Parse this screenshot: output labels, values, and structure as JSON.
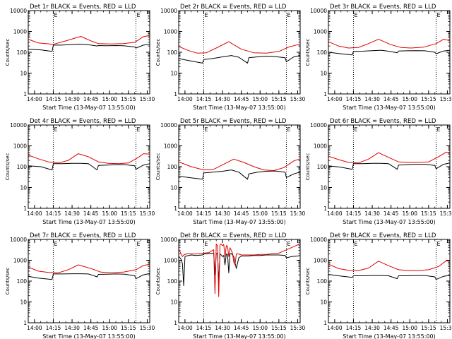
{
  "figure": {
    "background": "#ffffff",
    "axis_color": "#000000",
    "events_color": "#000000",
    "lld_color": "#e00000"
  },
  "chart_data": [
    {
      "type": "line",
      "scale": "log",
      "title": "Det 1r BLACK = Events, RED = LLD",
      "ylabel": "Counts/sec",
      "xlabel": "Start Time (13-May-07 13:55:00)",
      "x_ticks": [
        "14:00",
        "14:15",
        "14:30",
        "14:45",
        "15:00",
        "15:15",
        "15:30"
      ],
      "y_ticks": [
        "1",
        "10",
        "100",
        "1000",
        "10000"
      ],
      "ylim": [
        1,
        10000
      ],
      "xlim_min": [
        0,
        97
      ],
      "saa_markers_min": [
        20,
        86
      ],
      "marker_labels": [
        "E",
        "E"
      ],
      "series": [
        {
          "name": "Events",
          "x": [
            0,
            10,
            19,
            20,
            26,
            34,
            41,
            48,
            55,
            56,
            63,
            70,
            76,
            85,
            86,
            92,
            97
          ],
          "y": [
            140,
            130,
            110,
            220,
            220,
            235,
            245,
            230,
            200,
            210,
            205,
            210,
            205,
            180,
            160,
            220,
            240
          ]
        },
        {
          "name": "LLD",
          "x": [
            0,
            8,
            20,
            30,
            42,
            50,
            56,
            66,
            76,
            85,
            92,
            97
          ],
          "y": [
            420,
            280,
            240,
            350,
            580,
            350,
            260,
            250,
            260,
            300,
            560,
            640
          ]
        }
      ]
    },
    {
      "type": "line",
      "scale": "log",
      "title": "Det 2r BLACK = Events, RED = LLD",
      "ylabel": "Counts/sec",
      "xlabel": "Start Time (13-May-07 13:55:00)",
      "x_ticks": [
        "14:00",
        "14:15",
        "14:30",
        "14:45",
        "15:00",
        "15:15",
        "15:30"
      ],
      "y_ticks": [
        "1",
        "10",
        "100",
        "1000",
        "10000"
      ],
      "ylim": [
        1,
        10000
      ],
      "xlim_min": [
        0,
        97
      ],
      "saa_markers_min": [
        20,
        86
      ],
      "marker_labels": [
        "E",
        "E"
      ],
      "series": [
        {
          "name": "Events",
          "x": [
            0,
            8,
            19,
            20,
            27,
            35,
            42,
            48,
            55,
            56,
            63,
            70,
            77,
            85,
            86,
            92,
            97
          ],
          "y": [
            50,
            40,
            30,
            45,
            50,
            60,
            70,
            58,
            30,
            55,
            60,
            65,
            62,
            55,
            35,
            60,
            70
          ]
        },
        {
          "name": "LLD",
          "x": [
            0,
            8,
            15,
            22,
            30,
            40,
            50,
            60,
            70,
            80,
            88,
            95,
            97
          ],
          "y": [
            190,
            120,
            90,
            95,
            160,
            320,
            140,
            95,
            90,
            110,
            180,
            230,
            220
          ]
        }
      ]
    },
    {
      "type": "line",
      "scale": "log",
      "title": "Det 3r BLACK = Events, RED = LLD",
      "ylabel": "Counts/sec",
      "xlabel": "Start Time (13-May-07 13:55:00)",
      "x_ticks": [
        "14:00",
        "14:15",
        "14:30",
        "14:45",
        "15:00",
        "15:15",
        "15:30"
      ],
      "y_ticks": [
        "1",
        "10",
        "100",
        "1000",
        "10000"
      ],
      "ylim": [
        1,
        10000
      ],
      "xlim_min": [
        0,
        97
      ],
      "saa_markers_min": [
        20,
        86
      ],
      "marker_labels": [
        "E",
        "E"
      ],
      "series": [
        {
          "name": "Events",
          "x": [
            0,
            10,
            19,
            20,
            27,
            35,
            42,
            48,
            55,
            56,
            63,
            70,
            77,
            85,
            86,
            92,
            97
          ],
          "y": [
            100,
            85,
            75,
            110,
            112,
            120,
            125,
            112,
            95,
            115,
            118,
            120,
            118,
            100,
            85,
            115,
            125
          ]
        },
        {
          "name": "LLD",
          "x": [
            0,
            8,
            16,
            24,
            32,
            40,
            50,
            58,
            66,
            76,
            86,
            92,
            97
          ],
          "y": [
            320,
            200,
            160,
            170,
            260,
            420,
            230,
            170,
            160,
            175,
            260,
            420,
            360
          ]
        }
      ]
    },
    {
      "type": "line",
      "scale": "log",
      "title": "Det 4r BLACK = Events, RED = LLD",
      "ylabel": "Counts/sec",
      "xlabel": "Start Time (13-May-07 13:55:00)",
      "x_ticks": [
        "14:00",
        "14:15",
        "14:30",
        "14:45",
        "15:00",
        "15:15",
        "15:30"
      ],
      "y_ticks": [
        "1",
        "10",
        "100",
        "1000",
        "10000"
      ],
      "ylim": [
        1,
        10000
      ],
      "xlim_min": [
        0,
        97
      ],
      "saa_markers_min": [
        20,
        86
      ],
      "marker_labels": [
        "E",
        "E"
      ],
      "series": [
        {
          "name": "Events",
          "x": [
            0,
            10,
            19,
            20,
            27,
            35,
            42,
            48,
            55,
            56,
            63,
            70,
            77,
            85,
            86,
            92,
            97
          ],
          "y": [
            110,
            100,
            70,
            140,
            140,
            145,
            145,
            140,
            70,
            115,
            120,
            125,
            125,
            110,
            75,
            120,
            140
          ]
        },
        {
          "name": "LLD",
          "x": [
            0,
            8,
            16,
            24,
            32,
            40,
            48,
            56,
            64,
            72,
            80,
            88,
            92,
            97
          ],
          "y": [
            360,
            240,
            170,
            150,
            200,
            420,
            300,
            170,
            145,
            140,
            150,
            280,
            420,
            400
          ]
        }
      ]
    },
    {
      "type": "line",
      "scale": "log",
      "title": "Det 5r BLACK = Events, RED = LLD",
      "ylabel": "Counts/sec",
      "xlabel": "Start Time (13-May-07 13:55:00)",
      "x_ticks": [
        "14:00",
        "14:15",
        "14:30",
        "14:45",
        "15:00",
        "15:15",
        "15:30"
      ],
      "y_ticks": [
        "1",
        "10",
        "100",
        "1000",
        "10000"
      ],
      "ylim": [
        1,
        10000
      ],
      "xlim_min": [
        0,
        97
      ],
      "saa_markers_min": [
        20,
        86
      ],
      "marker_labels": [
        "E",
        "E"
      ],
      "series": [
        {
          "name": "Events",
          "x": [
            0,
            8,
            19,
            20,
            27,
            35,
            42,
            48,
            55,
            56,
            63,
            70,
            77,
            85,
            86,
            92,
            97
          ],
          "y": [
            35,
            30,
            25,
            50,
            55,
            60,
            70,
            55,
            25,
            45,
            55,
            60,
            62,
            55,
            30,
            45,
            55
          ]
        },
        {
          "name": "LLD",
          "x": [
            0,
            10,
            20,
            28,
            36,
            44,
            52,
            60,
            68,
            76,
            84,
            92,
            97
          ],
          "y": [
            170,
            100,
            70,
            75,
            130,
            230,
            160,
            100,
            70,
            65,
            90,
            190,
            240
          ]
        }
      ]
    },
    {
      "type": "line",
      "scale": "log",
      "title": "Det 6r BLACK = Events, RED = LLD",
      "ylabel": "Counts/sec",
      "xlabel": "Start Time (13-May-07 13:55:00)",
      "x_ticks": [
        "14:00",
        "14:15",
        "14:30",
        "14:45",
        "15:00",
        "15:15",
        "15:30"
      ],
      "y_ticks": [
        "1",
        "10",
        "100",
        "1000",
        "10000"
      ],
      "ylim": [
        1,
        10000
      ],
      "xlim_min": [
        0,
        97
      ],
      "saa_markers_min": [
        20,
        86
      ],
      "marker_labels": [
        "E",
        "E"
      ],
      "series": [
        {
          "name": "Events",
          "x": [
            0,
            10,
            19,
            20,
            27,
            35,
            42,
            48,
            55,
            56,
            63,
            70,
            77,
            85,
            86,
            92,
            97
          ],
          "y": [
            110,
            95,
            75,
            140,
            140,
            145,
            145,
            140,
            75,
            120,
            125,
            130,
            130,
            115,
            80,
            130,
            150
          ]
        },
        {
          "name": "LLD",
          "x": [
            0,
            8,
            16,
            24,
            32,
            40,
            48,
            56,
            64,
            72,
            80,
            88,
            94,
            97
          ],
          "y": [
            320,
            220,
            160,
            150,
            230,
            470,
            280,
            170,
            160,
            160,
            170,
            300,
            500,
            420
          ]
        }
      ]
    },
    {
      "type": "line",
      "scale": "log",
      "title": "Det 7r BLACK = Events, RED = LLD",
      "ylabel": "Counts/sec",
      "xlabel": "Start Time (13-May-07 13:55:00)",
      "x_ticks": [
        "14:00",
        "14:15",
        "14:30",
        "14:45",
        "15:00",
        "15:15",
        "15:30"
      ],
      "y_ticks": [
        "1",
        "10",
        "100",
        "1000",
        "10000"
      ],
      "ylim": [
        1,
        10000
      ],
      "xlim_min": [
        0,
        97
      ],
      "saa_markers_min": [
        20,
        86
      ],
      "marker_labels": [
        "E",
        "E"
      ],
      "series": [
        {
          "name": "Events",
          "x": [
            0,
            8,
            19,
            20,
            27,
            35,
            42,
            48,
            55,
            56,
            63,
            70,
            77,
            85,
            86,
            92,
            97
          ],
          "y": [
            170,
            140,
            120,
            220,
            220,
            225,
            225,
            220,
            160,
            210,
            215,
            220,
            215,
            180,
            130,
            200,
            230
          ]
        },
        {
          "name": "LLD",
          "x": [
            0,
            8,
            16,
            24,
            32,
            40,
            50,
            58,
            66,
            76,
            86,
            92,
            97
          ],
          "y": [
            470,
            300,
            260,
            250,
            350,
            600,
            400,
            270,
            250,
            270,
            350,
            560,
            640
          ]
        }
      ]
    },
    {
      "type": "line",
      "scale": "log",
      "title": "Det 8r BLACK = Events, RED = LLD",
      "ylabel": "Counts/sec",
      "xlabel": "Start Time (13-May-07 13:55:00)",
      "x_ticks": [
        "14:00",
        "14:15",
        "14:30",
        "14:45",
        "15:00",
        "15:15",
        "15:30"
      ],
      "y_ticks": [
        "1",
        "10",
        "100",
        "1000",
        "10000"
      ],
      "ylim": [
        1,
        10000
      ],
      "xlim_min": [
        0,
        97
      ],
      "saa_markers_min": [
        20,
        86
      ],
      "marker_labels": [
        "E",
        "E"
      ],
      "series": [
        {
          "name": "Events",
          "x": [
            0,
            2,
            3,
            4,
            5,
            6,
            8,
            10,
            14,
            19,
            20,
            24,
            28,
            29,
            30,
            31,
            32,
            33,
            34,
            35,
            36,
            37,
            38,
            39,
            40,
            41,
            42,
            43,
            44,
            46,
            48,
            50,
            55,
            60,
            65,
            70,
            75,
            80,
            85,
            86,
            90,
            95,
            97
          ],
          "y": [
            1600,
            1100,
            700,
            60,
            1500,
            1600,
            1700,
            1800,
            1700,
            1800,
            2000,
            2100,
            2200,
            200,
            2100,
            2200,
            100,
            2000,
            1800,
            1500,
            1700,
            600,
            2000,
            1900,
            250,
            2000,
            2100,
            1800,
            1500,
            400,
            1300,
            1600,
            1600,
            1700,
            1700,
            1800,
            1800,
            1800,
            1700,
            1300,
            1500,
            1600,
            1700
          ]
        },
        {
          "name": "LLD",
          "x": [
            0,
            2,
            3,
            4,
            6,
            8,
            10,
            14,
            18,
            20,
            24,
            28,
            29,
            30,
            31,
            32,
            33,
            34,
            35,
            36,
            37,
            38,
            39,
            40,
            41,
            42,
            43,
            44,
            45,
            46,
            48,
            50,
            55,
            60,
            65,
            70,
            75,
            80,
            85,
            90,
            95,
            97
          ],
          "y": [
            3500,
            2000,
            1500,
            1800,
            2000,
            2100,
            2000,
            2000,
            2100,
            2200,
            2300,
            3200,
            25,
            6000,
            5000,
            18,
            5500,
            6000,
            5000,
            5800,
            1500,
            5000,
            4800,
            1500,
            4000,
            3000,
            2200,
            800,
            600,
            2000,
            2000,
            1800,
            1800,
            1800,
            1900,
            1900,
            2100,
            2200,
            3000,
            4000,
            5500,
            6000
          ]
        }
      ]
    },
    {
      "type": "line",
      "scale": "log",
      "title": "Det 9r BLACK = Events, RED = LLD",
      "ylabel": "Counts/sec",
      "xlabel": "Start Time (13-May-07 13:55:00)",
      "x_ticks": [
        "14:00",
        "14:15",
        "14:30",
        "14:45",
        "15:00",
        "15:15",
        "15:30"
      ],
      "y_ticks": [
        "1",
        "10",
        "100",
        "1000",
        "10000"
      ],
      "ylim": [
        1,
        10000
      ],
      "xlim_min": [
        0,
        97
      ],
      "saa_markers_min": [
        20,
        86
      ],
      "marker_labels": [
        "E",
        "E"
      ],
      "series": [
        {
          "name": "Events",
          "x": [
            0,
            8,
            19,
            20,
            27,
            35,
            42,
            48,
            55,
            56,
            63,
            70,
            77,
            85,
            86,
            92,
            97
          ],
          "y": [
            210,
            180,
            150,
            180,
            180,
            185,
            185,
            180,
            130,
            180,
            180,
            185,
            185,
            160,
            120,
            170,
            190
          ]
        },
        {
          "name": "LLD",
          "x": [
            0,
            8,
            16,
            24,
            32,
            40,
            48,
            56,
            64,
            72,
            80,
            88,
            94,
            97
          ],
          "y": [
            650,
            400,
            330,
            320,
            420,
            900,
            550,
            350,
            320,
            320,
            350,
            500,
            950,
            900
          ]
        }
      ]
    }
  ]
}
